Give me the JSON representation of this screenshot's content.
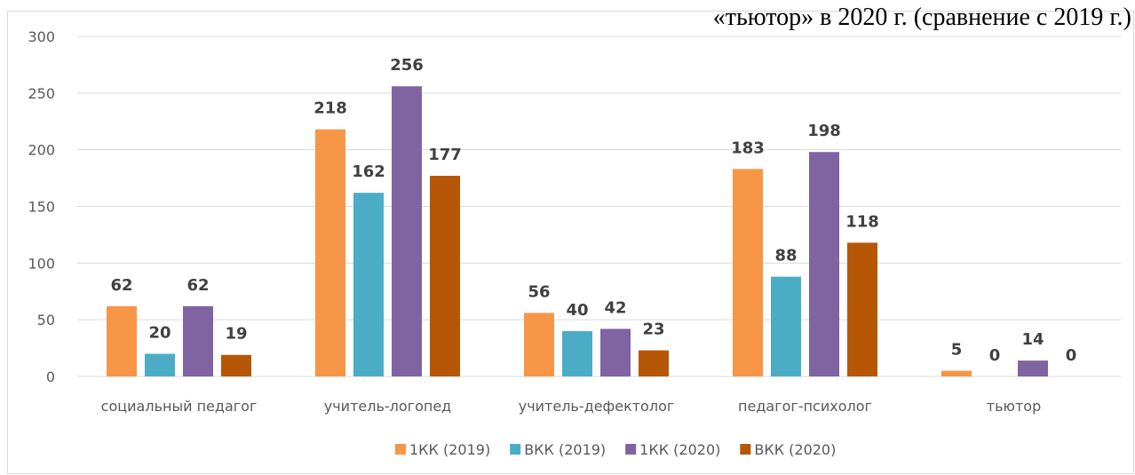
{
  "chart_data": {
    "type": "bar",
    "title": "«тьютор» в 2020 г. (сравнение с 2019 г.)",
    "categories": [
      "социальный педагог",
      "учитель-логопед",
      "учитель-дефектолог",
      "педагог-психолог",
      "тьютор"
    ],
    "series": [
      {
        "name": "1КК (2019)",
        "color": "#f79646",
        "values": [
          62,
          218,
          56,
          183,
          5
        ]
      },
      {
        "name": "ВКК (2019)",
        "color": "#4bacc6",
        "values": [
          20,
          162,
          40,
          88,
          0
        ]
      },
      {
        "name": "1КК (2020)",
        "color": "#8064a2",
        "values": [
          62,
          256,
          42,
          198,
          14
        ]
      },
      {
        "name": "ВКК (2020)",
        "color": "#b65708",
        "values": [
          19,
          177,
          23,
          118,
          0
        ]
      }
    ],
    "ylim": [
      0,
      300
    ],
    "yticks": [
      0,
      50,
      100,
      150,
      200,
      250,
      300
    ],
    "grid": true,
    "legend": "bottom"
  }
}
